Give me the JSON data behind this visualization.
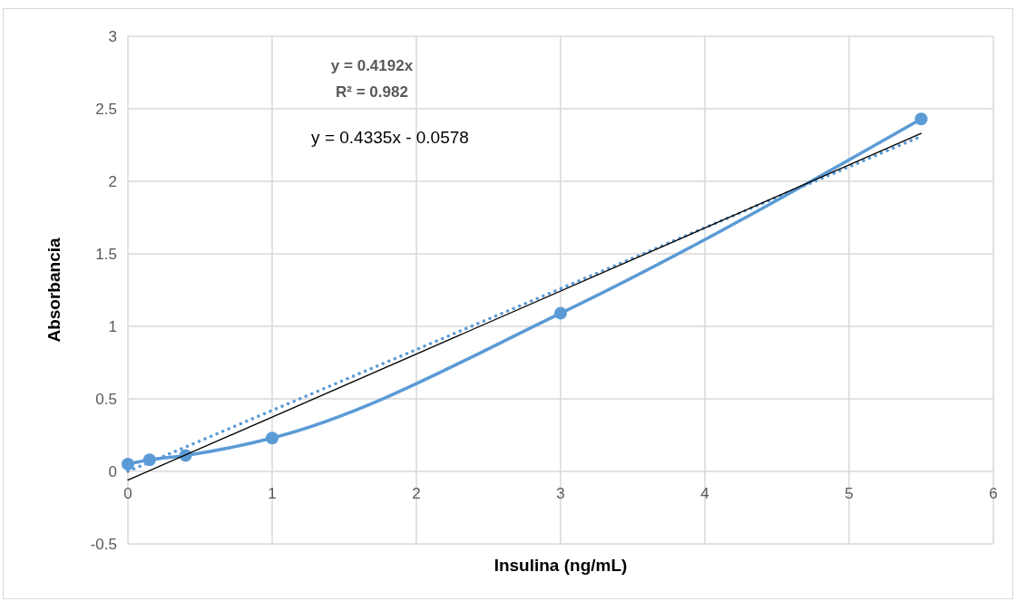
{
  "chart_data": {
    "type": "line",
    "xlabel": "Insulina (ng/mL)",
    "ylabel": "Absorbancia",
    "xlim": [
      0,
      6
    ],
    "xticks": [
      0,
      1,
      2,
      3,
      4,
      5,
      6
    ],
    "ylim": [
      -0.5,
      3
    ],
    "yticks": [
      -0.5,
      0,
      0.5,
      1,
      1.5,
      2,
      2.5,
      3
    ],
    "grid": true,
    "annotations": [
      "y = 0.4192x",
      "R² = 0.982",
      "y = 0.4335x - 0.0578"
    ],
    "series": [
      {
        "color": "#5b9bd5",
        "marker": "circle",
        "line_style": "solid",
        "x": [
          0,
          0.15,
          0.4,
          1,
          3,
          5.5
        ],
        "values": [
          0.05,
          0.08,
          0.11,
          0.23,
          1.09,
          2.43
        ]
      },
      {
        "color": "#5b9bd5",
        "marker": "none",
        "line_style": "dotted",
        "x": [
          0,
          5.5
        ],
        "values": [
          0,
          2.31
        ]
      },
      {
        "color": "#000000",
        "marker": "none",
        "line_style": "solid",
        "x": [
          0,
          5.5
        ],
        "values": [
          -0.06,
          2.33
        ]
      }
    ]
  }
}
